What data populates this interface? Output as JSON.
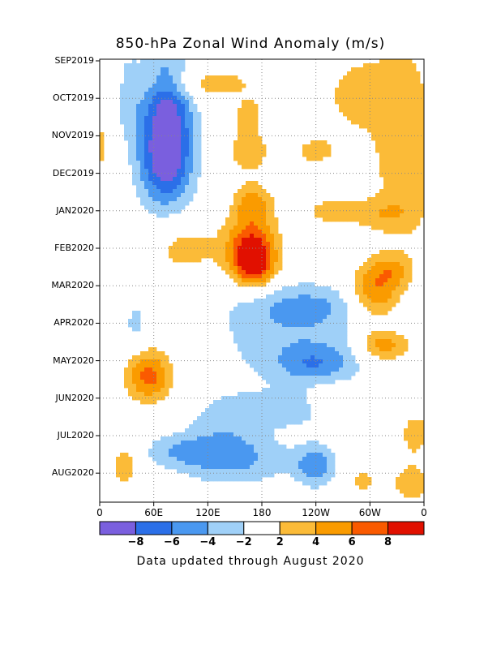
{
  "chart_data": {
    "type": "heatmap",
    "title": "850-hPa Zonal Wind Anomaly (m/s)",
    "footer": "Data updated through August 2020",
    "y_tick_labels": [
      "SEP2019",
      "OCT2019",
      "NOV2019",
      "DEC2019",
      "JAN2020",
      "FEB2020",
      "MAR2020",
      "APR2020",
      "MAY2020",
      "JUN2020",
      "JUL2020",
      "AUG2020"
    ],
    "x_tick_labels": [
      "0",
      "60E",
      "120E",
      "180",
      "120W",
      "60W",
      "0"
    ],
    "x_range_deg": [
      0,
      360
    ],
    "colorbar": {
      "boundaries": [
        -8,
        -6,
        -4,
        -2,
        2,
        4,
        6,
        8
      ],
      "labels": [
        "-8",
        "-6",
        "-4",
        "-2",
        "2",
        "4",
        "6",
        "8"
      ],
      "colors": [
        "#7a5fde",
        "#2b6fe8",
        "#4a98f0",
        "#9fd0f8",
        "#ffffff",
        "#fbbb38",
        "#fa9b00",
        "#fa5a00",
        "#e11000"
      ]
    },
    "grid": "dotted",
    "anomaly_blobs": [
      {
        "lon": 75,
        "month": 1.1,
        "lon_w": 20,
        "month_h": 1.0,
        "value": -7.2
      },
      {
        "lon": 73,
        "month": 2.7,
        "lon_w": 22,
        "month_h": 0.9,
        "value": -8.5
      },
      {
        "lon": 30,
        "month": 0.9,
        "lon_w": 12,
        "month_h": 0.9,
        "value": -3.0
      },
      {
        "lon": 115,
        "month": 0.6,
        "lon_w": 45,
        "month_h": 0.3,
        "value": 3.2
      },
      {
        "lon": 165,
        "month": 2.4,
        "lon_w": 20,
        "month_h": 0.5,
        "value": 3.0
      },
      {
        "lon": 240,
        "month": 2.4,
        "lon_w": 18,
        "month_h": 0.3,
        "value": 2.8
      },
      {
        "lon": 285,
        "month": 0.9,
        "lon_w": 25,
        "month_h": 0.7,
        "value": 3.0
      },
      {
        "lon": 337,
        "month": 2.1,
        "lon_w": 25,
        "month_h": 2.0,
        "value": 3.6
      },
      {
        "lon": 170,
        "month": 3.8,
        "lon_w": 15,
        "month_h": 0.35,
        "value": 4.5
      },
      {
        "lon": 258,
        "month": 4.0,
        "lon_w": 25,
        "month_h": 0.3,
        "value": 2.8
      },
      {
        "lon": 315,
        "month": 4.1,
        "lon_w": 25,
        "month_h": 0.3,
        "value": 2.5
      },
      {
        "lon": 168,
        "month": 5.0,
        "lon_w": 20,
        "month_h": 0.6,
        "value": 8.5
      },
      {
        "lon": 172,
        "month": 5.5,
        "lon_w": 15,
        "month_h": 0.4,
        "value": 5.5
      },
      {
        "lon": 95,
        "month": 5.0,
        "lon_w": 25,
        "month_h": 0.5,
        "value": 3.0
      },
      {
        "lon": 305,
        "month": 6.2,
        "lon_w": 20,
        "month_h": 0.55,
        "value": 6.5
      },
      {
        "lon": 325,
        "month": 5.6,
        "lon_w": 15,
        "month_h": 0.3,
        "value": 3.0
      },
      {
        "lon": 230,
        "month": 6.5,
        "lon_w": 55,
        "month_h": 0.4,
        "value": -3.0
      },
      {
        "lon": 215,
        "month": 7.4,
        "lon_w": 65,
        "month_h": 0.9,
        "value": -3.2
      },
      {
        "lon": 240,
        "month": 8.1,
        "lon_w": 30,
        "month_h": 0.35,
        "value": -4.0
      },
      {
        "lon": 40,
        "month": 7.0,
        "lon_w": 10,
        "month_h": 0.5,
        "value": -2.5
      },
      {
        "lon": 315,
        "month": 7.6,
        "lon_w": 20,
        "month_h": 0.3,
        "value": 5.5
      },
      {
        "lon": 55,
        "month": 8.4,
        "lon_w": 18,
        "month_h": 0.5,
        "value": 6.8
      },
      {
        "lon": 215,
        "month": 9.3,
        "lon_w": 55,
        "month_h": 0.35,
        "value": -2.8
      },
      {
        "lon": 140,
        "month": 10.0,
        "lon_w": 35,
        "month_h": 0.7,
        "value": -2.8
      },
      {
        "lon": 155,
        "month": 10.7,
        "lon_w": 55,
        "month_h": 0.45,
        "value": -3.0
      },
      {
        "lon": 90,
        "month": 10.4,
        "lon_w": 35,
        "month_h": 0.3,
        "value": -2.8
      },
      {
        "lon": 240,
        "month": 10.8,
        "lon_w": 15,
        "month_h": 0.4,
        "value": -5.0
      },
      {
        "lon": 30,
        "month": 10.7,
        "lon_w": 12,
        "month_h": 0.5,
        "value": 3.0
      },
      {
        "lon": 255,
        "month": 9.1,
        "lon_w": 15,
        "month_h": 0.3,
        "value": 3.0
      },
      {
        "lon": 350,
        "month": 9.9,
        "lon_w": 15,
        "month_h": 0.5,
        "value": 2.7
      },
      {
        "lon": 345,
        "month": 11.3,
        "lon_w": 20,
        "month_h": 0.5,
        "value": 2.6
      },
      {
        "lon": 165,
        "month": 1.4,
        "lon_w": 12,
        "month_h": 0.3,
        "value": 2.7
      },
      {
        "lon": 290,
        "month": 11.2,
        "lon_w": 15,
        "month_h": 0.3,
        "value": 2.5
      }
    ]
  }
}
